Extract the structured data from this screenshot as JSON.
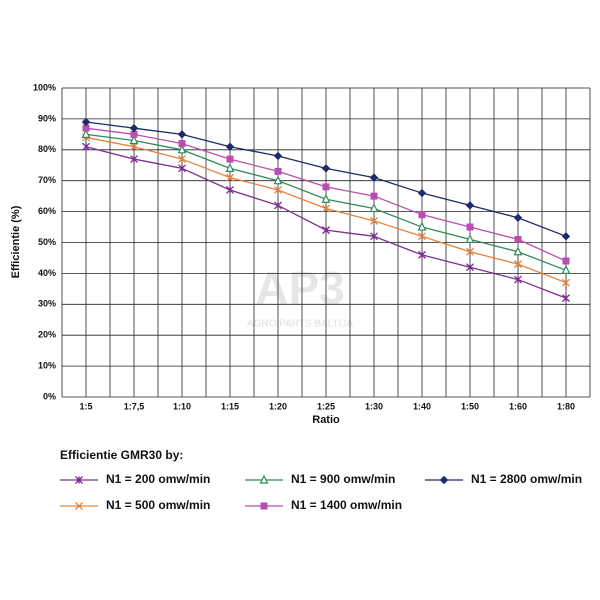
{
  "chart_data": {
    "type": "line",
    "x_label": "Ratio",
    "y_label": "Efficientie (%)",
    "legend_title": "Efficientie GMR30 by:",
    "watermark": {
      "logo": "AP3",
      "text": "AGRO PARTS BALTIJA"
    },
    "categories": [
      "1:5",
      "1:7,5",
      "1:10",
      "1:15",
      "1:20",
      "1:25",
      "1:30",
      "1:40",
      "1:50",
      "1:60",
      "1:80"
    ],
    "ylim": [
      0,
      100
    ],
    "yticks": [
      {
        "value": 0,
        "label": "0%"
      },
      {
        "value": 10,
        "label": "10%"
      },
      {
        "value": 20,
        "label": "20%"
      },
      {
        "value": 30,
        "label": "30%"
      },
      {
        "value": 40,
        "label": "40%"
      },
      {
        "value": 50,
        "label": "50%"
      },
      {
        "value": 60,
        "label": "60%"
      },
      {
        "value": 70,
        "label": "70%"
      },
      {
        "value": 80,
        "label": "80%"
      },
      {
        "value": 90,
        "label": "90%"
      },
      {
        "value": 100,
        "label": "100%"
      }
    ],
    "grid": true,
    "series": [
      {
        "name": "N1 = 200 omw/min",
        "color": "#7b2d8e",
        "marker": "asterisk",
        "values": [
          81,
          77,
          74,
          67,
          62,
          54,
          52,
          46,
          42,
          38,
          32
        ]
      },
      {
        "name": "N1 = 500 omw/min",
        "color": "#e8823a",
        "marker": "cross",
        "values": [
          84,
          81,
          77,
          71,
          67,
          61,
          57,
          52,
          47,
          43,
          37
        ]
      },
      {
        "name": "N1 = 900 omw/min",
        "color": "#2e8b57",
        "marker": "triangle",
        "values": [
          85,
          83,
          80,
          74,
          70,
          64,
          61,
          55,
          51,
          47,
          41
        ]
      },
      {
        "name": "N1 = 1400 omw/min",
        "color": "#b84fb0",
        "marker": "square",
        "values": [
          87,
          85,
          82,
          77,
          73,
          68,
          65,
          59,
          55,
          51,
          44
        ]
      },
      {
        "name": "N1 = 2800 omw/min",
        "color": "#1f2a6b",
        "marker": "diamond",
        "values": [
          89,
          87,
          85,
          81,
          78,
          74,
          71,
          66,
          62,
          58,
          52
        ]
      }
    ]
  }
}
